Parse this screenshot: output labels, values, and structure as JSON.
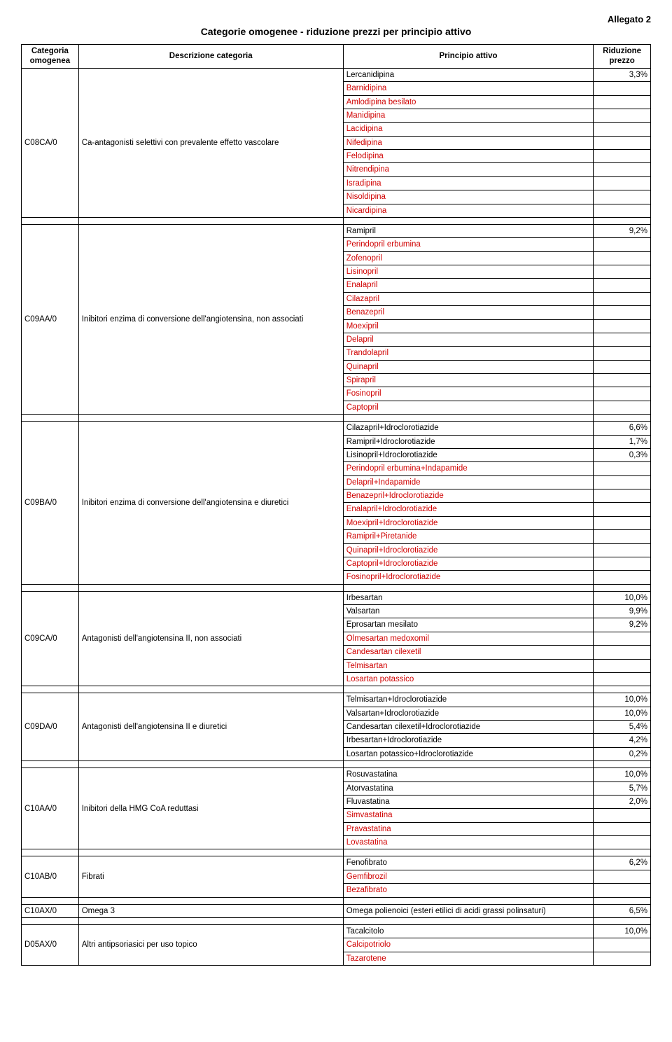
{
  "header": {
    "allegato": "Allegato 2",
    "title": "Categorie omogenee - riduzione prezzi per principio attivo"
  },
  "columns": {
    "c1": "Categoria omogenea",
    "c2": "Descrizione categoria",
    "c3": "Principio attivo",
    "c4": "Riduzione prezzo"
  },
  "colors": {
    "red": "#d00000",
    "black": "#000000"
  },
  "groups": [
    {
      "code": "C08CA/0",
      "desc": "Ca-antagonisti selettivi con prevalente effetto vascolare",
      "rows": [
        {
          "name": "Lercanidipina",
          "pct": "3,3%",
          "red": false
        },
        {
          "name": "Barnidipina",
          "pct": "",
          "red": true
        },
        {
          "name": "Amlodipina besilato",
          "pct": "",
          "red": true
        },
        {
          "name": "Manidipina",
          "pct": "",
          "red": true
        },
        {
          "name": "Lacidipina",
          "pct": "",
          "red": true
        },
        {
          "name": "Nifedipina",
          "pct": "",
          "red": true
        },
        {
          "name": "Felodipina",
          "pct": "",
          "red": true
        },
        {
          "name": "Nitrendipina",
          "pct": "",
          "red": true
        },
        {
          "name": "Isradipina",
          "pct": "",
          "red": true
        },
        {
          "name": "Nisoldipina",
          "pct": "",
          "red": true
        },
        {
          "name": "Nicardipina",
          "pct": "",
          "red": true
        }
      ]
    },
    {
      "code": "C09AA/0",
      "desc": "Inibitori enzima di conversione dell'angiotensina, non associati",
      "rows": [
        {
          "name": "Ramipril",
          "pct": "9,2%",
          "red": false
        },
        {
          "name": "Perindopril erbumina",
          "pct": "",
          "red": true
        },
        {
          "name": "Zofenopril",
          "pct": "",
          "red": true
        },
        {
          "name": "Lisinopril",
          "pct": "",
          "red": true
        },
        {
          "name": "Enalapril",
          "pct": "",
          "red": true
        },
        {
          "name": "Cilazapril",
          "pct": "",
          "red": true
        },
        {
          "name": "Benazepril",
          "pct": "",
          "red": true
        },
        {
          "name": "Moexipril",
          "pct": "",
          "red": true
        },
        {
          "name": "Delapril",
          "pct": "",
          "red": true
        },
        {
          "name": "Trandolapril",
          "pct": "",
          "red": true
        },
        {
          "name": "Quinapril",
          "pct": "",
          "red": true
        },
        {
          "name": "Spirapril",
          "pct": "",
          "red": true
        },
        {
          "name": "Fosinopril",
          "pct": "",
          "red": true
        },
        {
          "name": "Captopril",
          "pct": "",
          "red": true
        }
      ]
    },
    {
      "code": "C09BA/0",
      "desc": "Inibitori enzima di conversione dell'angiotensina e diuretici",
      "rows": [
        {
          "name": "Cilazapril+Idroclorotiazide",
          "pct": "6,6%",
          "red": false
        },
        {
          "name": "Ramipril+Idroclorotiazide",
          "pct": "1,7%",
          "red": false
        },
        {
          "name": "Lisinopril+Idroclorotiazide",
          "pct": "0,3%",
          "red": false
        },
        {
          "name": "Perindopril erbumina+Indapamide",
          "pct": "",
          "red": true
        },
        {
          "name": "Delapril+Indapamide",
          "pct": "",
          "red": true
        },
        {
          "name": "Benazepril+Idroclorotiazide",
          "pct": "",
          "red": true
        },
        {
          "name": "Enalapril+Idroclorotiazide",
          "pct": "",
          "red": true
        },
        {
          "name": "Moexipril+Idroclorotiazide",
          "pct": "",
          "red": true
        },
        {
          "name": "Ramipril+Piretanide",
          "pct": "",
          "red": true
        },
        {
          "name": "Quinapril+Idroclorotiazide",
          "pct": "",
          "red": true
        },
        {
          "name": "Captopril+Idroclorotiazide",
          "pct": "",
          "red": true
        },
        {
          "name": "Fosinopril+Idroclorotiazide",
          "pct": "",
          "red": true
        }
      ]
    },
    {
      "code": "C09CA/0",
      "desc": "Antagonisti dell'angiotensina II, non associati",
      "rows": [
        {
          "name": "Irbesartan",
          "pct": "10,0%",
          "red": false
        },
        {
          "name": "Valsartan",
          "pct": "9,9%",
          "red": false
        },
        {
          "name": "Eprosartan mesilato",
          "pct": "9,2%",
          "red": false
        },
        {
          "name": "Olmesartan medoxomil",
          "pct": "",
          "red": true
        },
        {
          "name": "Candesartan cilexetil",
          "pct": "",
          "red": true
        },
        {
          "name": "Telmisartan",
          "pct": "",
          "red": true
        },
        {
          "name": "Losartan potassico",
          "pct": "",
          "red": true
        }
      ]
    },
    {
      "code": "C09DA/0",
      "desc": "Antagonisti dell'angiotensina II e diuretici",
      "rows": [
        {
          "name": "Telmisartan+Idroclorotiazide",
          "pct": "10,0%",
          "red": false
        },
        {
          "name": "Valsartan+Idroclorotiazide",
          "pct": "10,0%",
          "red": false
        },
        {
          "name": "Candesartan cilexetil+Idroclorotiazide",
          "pct": "5,4%",
          "red": false
        },
        {
          "name": "Irbesartan+Idroclorotiazide",
          "pct": "4,2%",
          "red": false
        },
        {
          "name": "Losartan potassico+Idroclorotiazide",
          "pct": "0,2%",
          "red": false
        }
      ]
    },
    {
      "code": "C10AA/0",
      "desc": "Inibitori della HMG CoA reduttasi",
      "rows": [
        {
          "name": "Rosuvastatina",
          "pct": "10,0%",
          "red": false
        },
        {
          "name": "Atorvastatina",
          "pct": "5,7%",
          "red": false
        },
        {
          "name": "Fluvastatina",
          "pct": "2,0%",
          "red": false
        },
        {
          "name": "Simvastatina",
          "pct": "",
          "red": true
        },
        {
          "name": "Pravastatina",
          "pct": "",
          "red": true
        },
        {
          "name": "Lovastatina",
          "pct": "",
          "red": true
        }
      ]
    },
    {
      "code": "C10AB/0",
      "desc": "Fibrati",
      "rows": [
        {
          "name": "Fenofibrato",
          "pct": "6,2%",
          "red": false
        },
        {
          "name": "Gemfibrozil",
          "pct": "",
          "red": true
        },
        {
          "name": "Bezafibrato",
          "pct": "",
          "red": true
        }
      ]
    },
    {
      "code": "C10AX/0",
      "desc": "Omega 3",
      "rows": [
        {
          "name": "Omega polienoici (esteri etilici di acidi grassi polinsaturi)",
          "pct": "6,5%",
          "red": false
        }
      ]
    },
    {
      "code": "D05AX/0",
      "desc": "Altri antipsoriasici per uso topico",
      "rows": [
        {
          "name": "Tacalcitolo",
          "pct": "10,0%",
          "red": false
        },
        {
          "name": "Calcipotriolo",
          "pct": "",
          "red": true
        },
        {
          "name": "Tazarotene",
          "pct": "",
          "red": true
        }
      ]
    }
  ]
}
